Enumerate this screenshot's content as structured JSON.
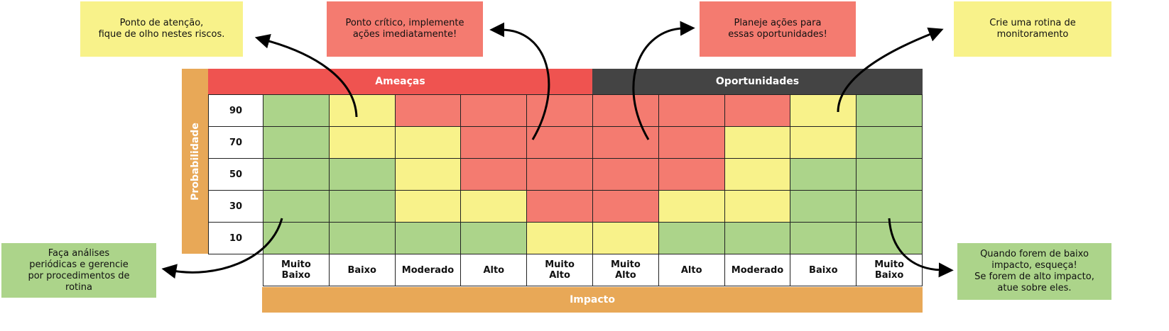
{
  "colors": {
    "low": "#acd48a",
    "mid": "#f8f28a",
    "high": "#f47b70",
    "threat": "#ef5350",
    "opportunity": "#444444",
    "axis": "#e8a857"
  },
  "headers": {
    "threats": "Ameaças",
    "opportunities": "Oportunidades"
  },
  "axes": {
    "probability": "Probabilidade",
    "impact": "Impacto"
  },
  "probabilities": [
    "90",
    "70",
    "50",
    "30",
    "10"
  ],
  "impacts": [
    "Muito\nBaixo",
    "Baixo",
    "Moderado",
    "Alto",
    "Muito\nAlto",
    "Muito\nAlto",
    "Alto",
    "Moderado",
    "Baixo",
    "Muito\nBaixo"
  ],
  "grid": [
    [
      "low",
      "mid",
      "high",
      "high",
      "high",
      "high",
      "high",
      "high",
      "mid",
      "low"
    ],
    [
      "low",
      "mid",
      "mid",
      "high",
      "high",
      "high",
      "high",
      "mid",
      "mid",
      "low"
    ],
    [
      "low",
      "low",
      "mid",
      "high",
      "high",
      "high",
      "high",
      "mid",
      "low",
      "low"
    ],
    [
      "low",
      "low",
      "mid",
      "mid",
      "high",
      "high",
      "mid",
      "mid",
      "low",
      "low"
    ],
    [
      "low",
      "low",
      "low",
      "low",
      "mid",
      "mid",
      "low",
      "low",
      "low",
      "low"
    ]
  ],
  "notes": {
    "attention": "Ponto de atenção,\nfique de olho nestes riscos.",
    "critical": "Ponto crítico, implemente\nações imediatamente!",
    "plan": "Planeje ações para\nessas oportunidades!",
    "monitor": "Crie uma rotina de\nmonitoramento",
    "routine": "Faça análises\nperiódicas e gerencie\npor procedimentos de\nrotina",
    "lowimpact": "Quando forem de baixo\nimpacto, esqueça!\nSe forem de alto impacto,\natue sobre eles."
  }
}
